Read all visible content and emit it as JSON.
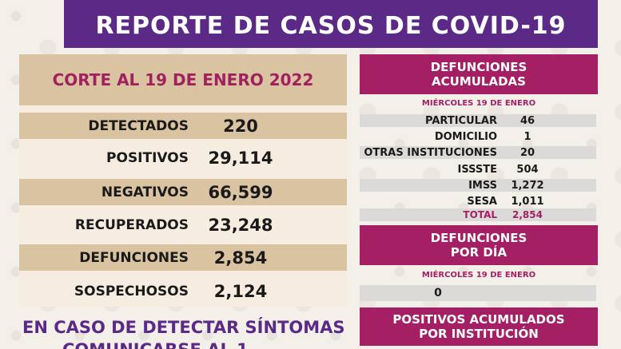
{
  "banner": {
    "title": "REPORTE DE CASOS DE COVID-19"
  },
  "cut": {
    "label": "CORTE AL 19 DE ENERO 2022"
  },
  "stats": [
    {
      "label": "DETECTADOS",
      "value": "220"
    },
    {
      "label": "POSITIVOS",
      "value": "29,114"
    },
    {
      "label": "NEGATIVOS",
      "value": "66,599"
    },
    {
      "label": "RECUPERADOS",
      "value": "23,248"
    },
    {
      "label": "DEFUNCIONES",
      "value": "2,854"
    },
    {
      "label": "SOSPECHOSOS",
      "value": "2,124"
    }
  ],
  "cta": {
    "line1": "EN CASO DE DETECTAR SÍNTOMAS",
    "line2": "COMUNICARSE AL 1"
  },
  "deaths_acc": {
    "title1": "DEFUNCIONES",
    "title2": "ACUMULADAS",
    "date": "MIÉRCOLES 19 DE ENERO",
    "rows": [
      {
        "label": "PARTICULAR",
        "value": "46"
      },
      {
        "label": "DOMICILIO",
        "value": "1"
      },
      {
        "label": "OTRAS INSTITUCIONES",
        "value": "20"
      },
      {
        "label": "ISSSTE",
        "value": "504"
      },
      {
        "label": "IMSS",
        "value": "1,272"
      },
      {
        "label": "SESA",
        "value": "1,011"
      }
    ],
    "total_label": "TOTAL",
    "total_value": "2,854"
  },
  "deaths_day": {
    "title1": "DEFUNCIONES",
    "title2": "POR DÍA",
    "date": "MIÉRCOLES 19 DE ENERO",
    "value": "0"
  },
  "positives_inst": {
    "title1": "POSITIVOS ACUMULADOS",
    "title2": "POR INSTITUCIÓN"
  },
  "colors": {
    "purple": "#5b2a86",
    "magenta": "#a41f64",
    "tan": "#d9c3a0"
  }
}
